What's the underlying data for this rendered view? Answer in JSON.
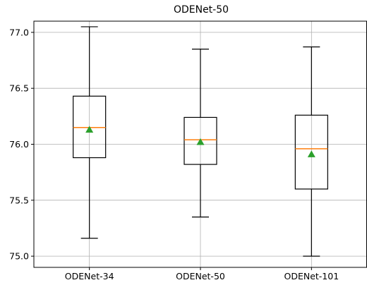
{
  "chart_data": {
    "type": "box",
    "title": "ODENet-50",
    "xlabel": "",
    "ylabel": "",
    "categories": [
      "ODENet-34",
      "ODENet-50",
      "ODENet-101"
    ],
    "ylim": [
      74.9,
      77.1
    ],
    "yticks": [
      75.0,
      75.5,
      76.0,
      76.5,
      77.0
    ],
    "ytick_labels": [
      "75.0",
      "75.5",
      "76.0",
      "76.5",
      "77.0"
    ],
    "grid": true,
    "boxes": [
      {
        "whisker_low": 75.16,
        "q1": 75.88,
        "median": 76.15,
        "q3": 76.43,
        "whisker_high": 77.05,
        "mean": 76.13
      },
      {
        "whisker_low": 75.35,
        "q1": 75.82,
        "median": 76.04,
        "q3": 76.24,
        "whisker_high": 76.85,
        "mean": 76.02
      },
      {
        "whisker_low": 75.0,
        "q1": 75.6,
        "median": 75.96,
        "q3": 76.26,
        "whisker_high": 76.87,
        "mean": 75.91
      }
    ],
    "colors": {
      "box": "#000000",
      "median": "#ff7f0e",
      "mean": "#2ca02c",
      "grid": "#b0b0b0"
    }
  }
}
